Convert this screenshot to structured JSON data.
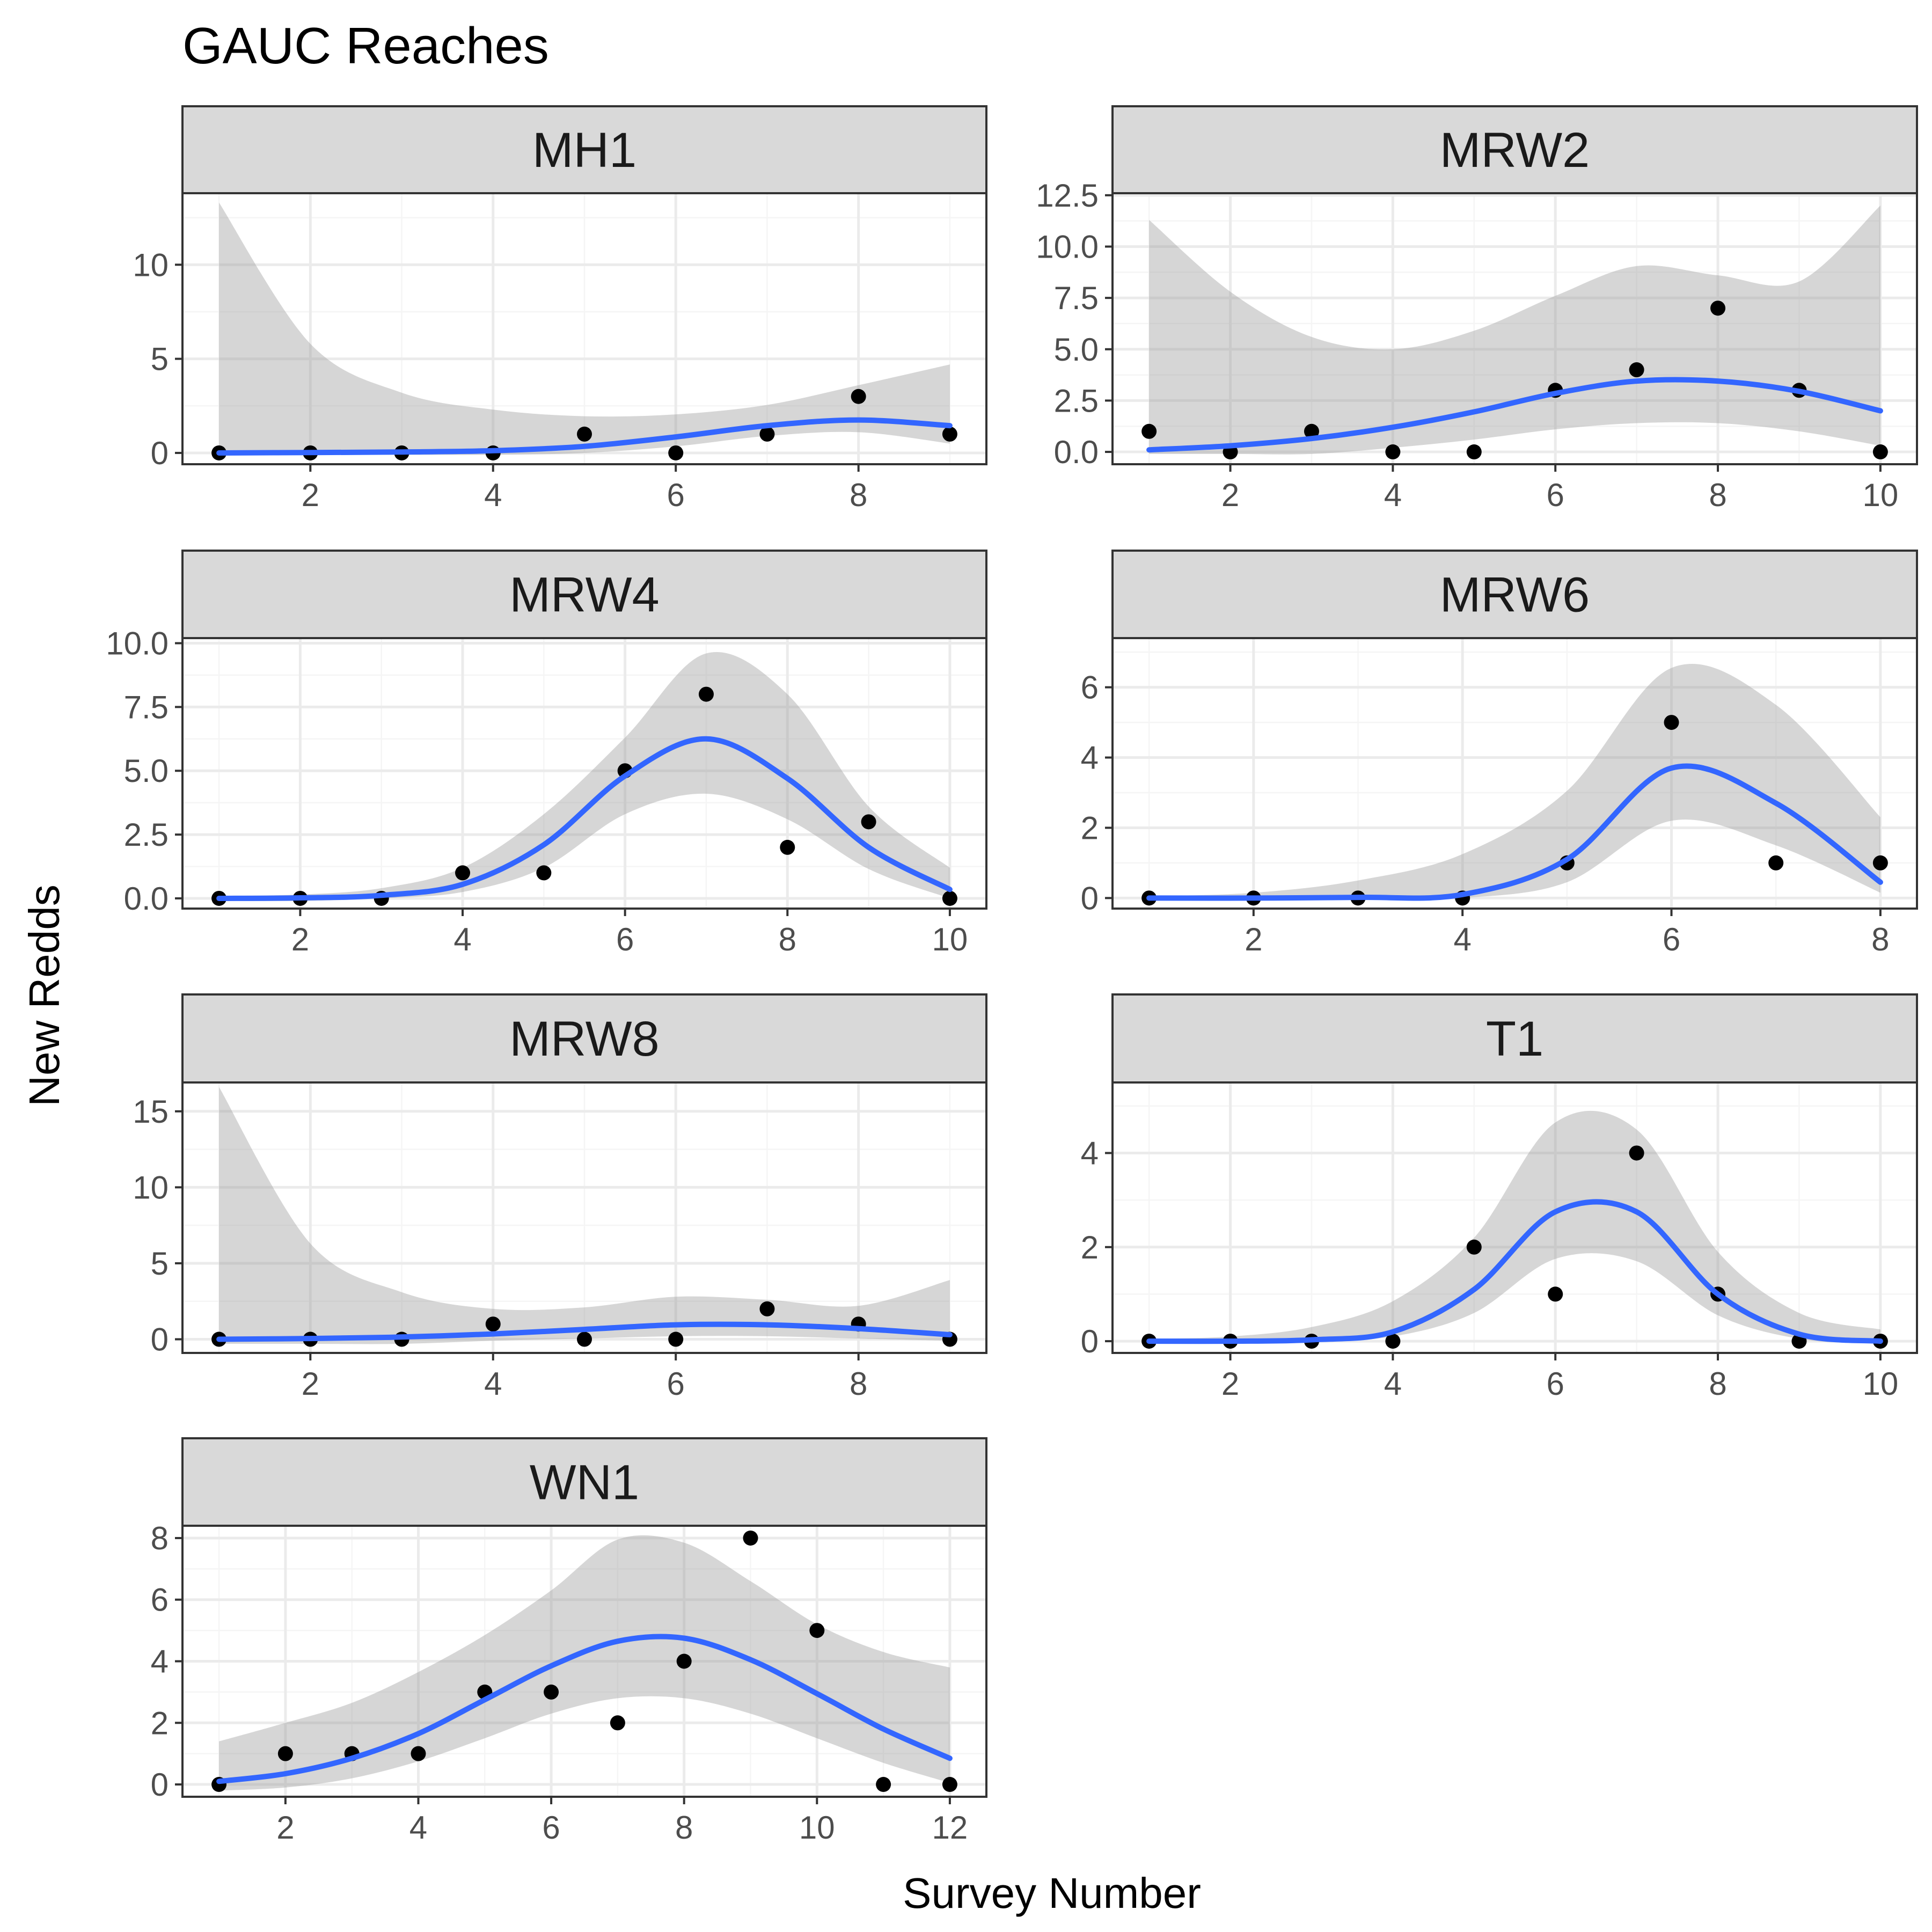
{
  "title": "GAUC Reaches",
  "x_axis_title": "Survey Number",
  "y_axis_title": "New Redds",
  "colors": {
    "point": "#000000",
    "smooth_line": "#3366FF",
    "ribbon": "#999999",
    "strip_fill": "#D9D9D9",
    "panel_border": "#333333",
    "grid_major": "#EBEBEB",
    "grid_minor": "#F5F5F5",
    "tick_text": "#4D4D4D"
  },
  "chart_data": [
    {
      "type": "scatter",
      "facet": "MH1",
      "xlim": [
        0.6,
        9.4
      ],
      "ylim": [
        -0.6,
        13.8
      ],
      "x_ticks": [
        2,
        4,
        6,
        8
      ],
      "y_ticks": [
        0,
        5,
        10
      ],
      "points": {
        "x": [
          1,
          2,
          3,
          4,
          5,
          6,
          7,
          8,
          9
        ],
        "y": [
          0,
          0,
          0,
          0,
          1,
          0,
          1,
          3,
          1
        ]
      },
      "smooth": {
        "x": [
          1,
          2,
          3,
          4,
          5,
          6,
          7,
          8,
          9
        ],
        "y": [
          0,
          0.02,
          0.05,
          0.12,
          0.35,
          0.85,
          1.45,
          1.75,
          1.45
        ],
        "lo": [
          -0.1,
          -0.1,
          -0.1,
          -0.1,
          0,
          0.35,
          0.9,
          1.1,
          0.5
        ],
        "hi": [
          13.3,
          5.8,
          3.2,
          2.3,
          1.95,
          2.05,
          2.55,
          3.6,
          4.7
        ]
      }
    },
    {
      "type": "scatter",
      "facet": "MRW2",
      "xlim": [
        0.55,
        10.45
      ],
      "ylim": [
        -0.6,
        12.6
      ],
      "x_ticks": [
        2,
        4,
        6,
        8,
        10
      ],
      "y_ticks": [
        0,
        2.5,
        5,
        7.5,
        10,
        12.5
      ],
      "y_tick_labels": [
        "0.0",
        "2.5",
        "5.0",
        "7.5",
        "10.0",
        "12.5"
      ],
      "points": {
        "x": [
          1,
          2,
          3,
          4,
          5,
          6,
          7,
          8,
          9,
          10
        ],
        "y": [
          1,
          0,
          1,
          0,
          0,
          3,
          4,
          7,
          3,
          0
        ]
      },
      "smooth": {
        "x": [
          1,
          2,
          3,
          4,
          5,
          6,
          7,
          8,
          9,
          10
        ],
        "y": [
          0.1,
          0.3,
          0.65,
          1.2,
          1.95,
          2.85,
          3.45,
          3.45,
          2.95,
          2.0
        ],
        "lo": [
          -0.1,
          -0.1,
          -0.1,
          0.2,
          0.6,
          1.1,
          1.4,
          1.4,
          1.0,
          0.3
        ],
        "hi": [
          11.3,
          7.8,
          5.6,
          5.0,
          5.9,
          7.6,
          9.05,
          8.6,
          8.3,
          12.0
        ]
      }
    },
    {
      "type": "scatter",
      "facet": "MRW4",
      "xlim": [
        0.55,
        10.45
      ],
      "ylim": [
        -0.4,
        10.2
      ],
      "x_ticks": [
        2,
        4,
        6,
        8,
        10
      ],
      "y_ticks": [
        0,
        2.5,
        5,
        7.5,
        10
      ],
      "y_tick_labels": [
        "0.0",
        "2.5",
        "5.0",
        "7.5",
        "10.0"
      ],
      "points": {
        "x": [
          1,
          2,
          3,
          4,
          5,
          6,
          7,
          8,
          9,
          10
        ],
        "y": [
          0,
          0,
          0,
          1,
          1,
          5,
          8,
          2,
          3,
          0
        ]
      },
      "smooth": {
        "x": [
          1,
          2,
          3,
          4,
          5,
          6,
          7,
          8,
          9,
          10
        ],
        "y": [
          0,
          0.02,
          0.12,
          0.55,
          2.1,
          4.8,
          6.25,
          4.7,
          2.0,
          0.35
        ],
        "lo": [
          -0.1,
          -0.1,
          0,
          0.25,
          1.2,
          3.3,
          4.1,
          3.1,
          1.15,
          0
        ],
        "hi": [
          0.1,
          0.15,
          0.4,
          1.2,
          3.3,
          6.3,
          9.6,
          8.0,
          3.6,
          1.2
        ]
      }
    },
    {
      "type": "scatter",
      "facet": "MRW6",
      "xlim": [
        0.65,
        8.35
      ],
      "ylim": [
        -0.3,
        7.4
      ],
      "x_ticks": [
        2,
        4,
        6,
        8
      ],
      "y_ticks": [
        0,
        2,
        4,
        6
      ],
      "points": {
        "x": [
          1,
          2,
          3,
          4,
          5,
          6,
          7,
          8
        ],
        "y": [
          0,
          0,
          0,
          0,
          1,
          5,
          1,
          1
        ]
      },
      "smooth": {
        "x": [
          1,
          2,
          3,
          4,
          5,
          6,
          7,
          8
        ],
        "y": [
          0,
          0,
          0.02,
          0.1,
          1.1,
          3.7,
          2.7,
          0.45
        ],
        "lo": [
          -0.05,
          -0.05,
          -0.05,
          0,
          0.45,
          2.2,
          1.5,
          0.15
        ],
        "hi": [
          0.05,
          0.15,
          0.5,
          1.25,
          3.05,
          6.55,
          5.5,
          2.3
        ]
      }
    },
    {
      "type": "scatter",
      "facet": "MRW8",
      "xlim": [
        0.6,
        9.4
      ],
      "ylim": [
        -0.9,
        16.9
      ],
      "x_ticks": [
        2,
        4,
        6,
        8
      ],
      "y_ticks": [
        0,
        5,
        10,
        15
      ],
      "points": {
        "x": [
          1,
          2,
          3,
          4,
          5,
          6,
          7,
          8,
          9
        ],
        "y": [
          0,
          0,
          0,
          1,
          0,
          0,
          2,
          1,
          0
        ]
      },
      "smooth": {
        "x": [
          1,
          2,
          3,
          4,
          5,
          6,
          7,
          8,
          9
        ],
        "y": [
          0,
          0.05,
          0.15,
          0.35,
          0.65,
          0.95,
          0.95,
          0.7,
          0.3
        ],
        "lo": [
          -0.3,
          -0.3,
          -0.3,
          -0.1,
          0.05,
          0.2,
          0.2,
          0.05,
          -0.1
        ],
        "hi": [
          16.6,
          6.3,
          3.1,
          2.0,
          2.1,
          2.8,
          2.6,
          2.2,
          3.9
        ]
      }
    },
    {
      "type": "scatter",
      "facet": "T1",
      "xlim": [
        0.55,
        10.45
      ],
      "ylim": [
        -0.25,
        5.5
      ],
      "x_ticks": [
        2,
        4,
        6,
        8,
        10
      ],
      "y_ticks": [
        0,
        2,
        4
      ],
      "points": {
        "x": [
          1,
          2,
          3,
          4,
          5,
          6,
          7,
          8,
          9,
          10
        ],
        "y": [
          0,
          0,
          0,
          0,
          2,
          1,
          4,
          1,
          0,
          0
        ]
      },
      "smooth": {
        "x": [
          1,
          2,
          3,
          4,
          5,
          6,
          7,
          8,
          9,
          10
        ],
        "y": [
          0,
          0,
          0.03,
          0.2,
          1.1,
          2.75,
          2.75,
          1.0,
          0.15,
          0
        ],
        "lo": [
          -0.05,
          -0.05,
          0,
          0.1,
          0.6,
          1.75,
          1.7,
          0.55,
          0.05,
          -0.05
        ],
        "hi": [
          0.05,
          0.1,
          0.3,
          0.85,
          2.2,
          4.65,
          4.5,
          1.9,
          0.6,
          0.25
        ]
      }
    },
    {
      "type": "scatter",
      "facet": "WN1",
      "xlim": [
        0.45,
        12.55
      ],
      "ylim": [
        -0.4,
        8.4
      ],
      "x_ticks": [
        2,
        4,
        6,
        8,
        10,
        12
      ],
      "y_ticks": [
        0,
        2,
        4,
        6,
        8
      ],
      "points": {
        "x": [
          1,
          2,
          3,
          4,
          5,
          6,
          7,
          8,
          9,
          10,
          11,
          12
        ],
        "y": [
          0,
          1,
          1,
          1,
          3,
          3,
          2,
          4,
          8,
          5,
          0,
          0
        ]
      },
      "smooth": {
        "x": [
          1,
          2,
          3,
          4,
          5,
          6,
          7,
          8,
          9,
          10,
          11,
          12
        ],
        "y": [
          0.1,
          0.35,
          0.85,
          1.65,
          2.75,
          3.85,
          4.65,
          4.75,
          4.05,
          2.95,
          1.8,
          0.85
        ],
        "lo": [
          -0.2,
          -0.1,
          0.2,
          0.75,
          1.5,
          2.3,
          2.8,
          2.8,
          2.3,
          1.5,
          0.7,
          0.05
        ],
        "hi": [
          1.4,
          2.0,
          2.65,
          3.65,
          4.85,
          6.3,
          7.95,
          7.85,
          6.6,
          5.2,
          4.3,
          3.8
        ]
      }
    }
  ]
}
